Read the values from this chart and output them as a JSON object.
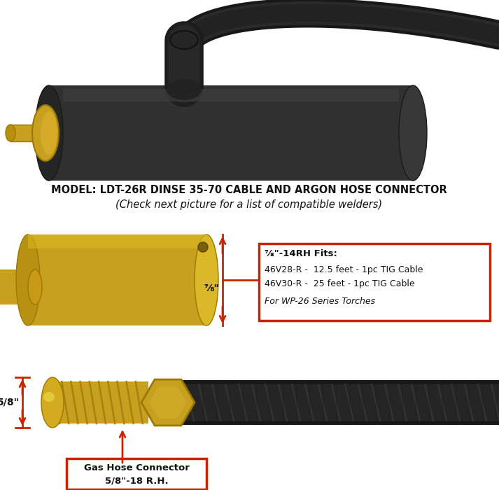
{
  "bg_color": "#ffffff",
  "title_line1": "MODEL: LDT-26R DINSE 35-70 CABLE AND ARGON HOSE CONNECTOR",
  "title_line2": "(Check next picture for a list of compatible welders)",
  "box1_title": "⅞\"-14RH Fits:",
  "box1_line1": "46V28-R -  12.5 feet - 1pc TIG Cable",
  "box1_line2": "46V30-R -  25 feet - 1pc TIG Cable",
  "box1_line3": "For WP-26 Series Torches",
  "box1_color": "#cc2200",
  "dim1_label": "⅞\"",
  "dim2_label": "5/8\"",
  "box2_line1": "Gas Hose Connector",
  "box2_line2": "5/8\"-18 R.H.",
  "arrow_color": "#cc2200",
  "text_color": "#111111",
  "brass_color": "#c8a020",
  "brass_dark": "#9a7800",
  "cable_color": "#1c1c1c",
  "body_color": "#2e2e2e"
}
